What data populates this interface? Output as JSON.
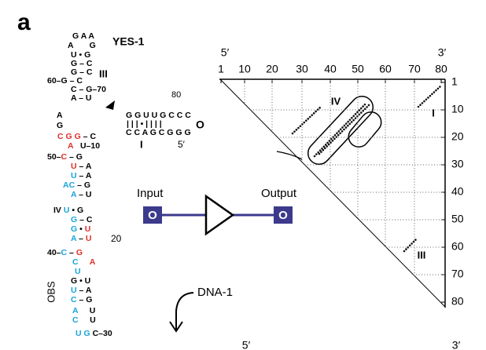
{
  "panel_label": "a",
  "structure": {
    "title": "YES-1",
    "rows": [
      [
        {
          "text": "G A A"
        }
      ],
      [
        {
          "text": "A       G"
        }
      ],
      [
        {
          "text": "U • G"
        }
      ],
      [
        {
          "text": "G – C"
        }
      ],
      [
        {
          "text": "G – C"
        }
      ],
      [
        {
          "text": "60–G – C"
        }
      ],
      [
        {
          "text": "C – G–70"
        }
      ],
      [
        {
          "text": "A – U"
        }
      ],
      [
        {
          "text": "A"
        }
      ],
      [
        {
          "text": "G"
        }
      ],
      [
        {
          "text": "C G G",
          "color": "#e0302a"
        },
        {
          "text": " – C"
        }
      ],
      [
        {
          "text": "A",
          "color": "#e0302a"
        },
        {
          "text": "   U–10"
        }
      ],
      [
        {
          "text": "50–"
        },
        {
          "text": "C",
          "color": "#e0302a"
        },
        {
          "text": " – G"
        }
      ],
      [
        {
          "text": "U",
          "color": "#e0302a"
        },
        {
          "text": " – A"
        }
      ],
      [
        {
          "text": "U",
          "color": "#1aa3d8"
        },
        {
          "text": " – A"
        }
      ],
      [
        {
          "text": "AC",
          "color": "#1aa3d8"
        },
        {
          "text": " – G"
        }
      ],
      [
        {
          "text": "A",
          "color": "#1aa3d8"
        },
        {
          "text": " – U"
        }
      ],
      [
        {
          "text": "IV "
        },
        {
          "text": "U",
          "color": "#1aa3d8"
        },
        {
          "text": " • G"
        }
      ],
      [
        {
          "text": "G",
          "color": "#1aa3d8"
        },
        {
          "text": " – C"
        }
      ],
      [
        {
          "text": "G",
          "color": "#1aa3d8"
        },
        {
          "text": " • "
        },
        {
          "text": "U",
          "color": "#e0302a"
        }
      ],
      [
        {
          "text": "A",
          "color": "#1aa3d8"
        },
        {
          "text": " – "
        },
        {
          "text": "U",
          "color": "#e0302a"
        }
      ],
      [
        {
          "text": "40–"
        },
        {
          "text": "C",
          "color": "#1aa3d8"
        },
        {
          "text": " – "
        },
        {
          "text": "G",
          "color": "#e0302a"
        }
      ],
      [
        {
          "text": "C",
          "color": "#1aa3d8"
        },
        {
          "text": "     "
        },
        {
          "text": "A",
          "color": "#e0302a"
        }
      ],
      [
        {
          "text": "U",
          "color": "#1aa3d8"
        }
      ],
      [
        {
          "text": "G • U"
        }
      ],
      [
        {
          "text": "U",
          "color": "#1aa3d8"
        },
        {
          "text": " – A"
        }
      ],
      [
        {
          "text": "C",
          "color": "#1aa3d8"
        },
        {
          "text": " – G"
        }
      ],
      [
        {
          "text": "A",
          "color": "#1aa3d8"
        },
        {
          "text": "     U"
        }
      ],
      [
        {
          "text": "C",
          "color": "#1aa3d8"
        },
        {
          "text": "     U"
        }
      ],
      [
        {
          "text": "U G",
          "color": "#1aa3d8"
        },
        {
          "text": " C–30"
        }
      ]
    ],
    "arm_rows": [
      "G G U U G C C C",
      "| | | • | | | |",
      "C C A G C G G G"
    ],
    "labels": [
      "III",
      "80",
      "I",
      "5′",
      "O",
      "20"
    ],
    "side_label": "OBS"
  },
  "gate": {
    "input": "Input",
    "output": "Output",
    "input_box": "O",
    "output_box": "O",
    "trigger": "DNA-1"
  },
  "dot_plot": {
    "top_end_labels": [
      "5′",
      "3′"
    ],
    "top_ticks": [
      "1",
      "10",
      "20",
      "30",
      "40",
      "50",
      "60",
      "70",
      "80"
    ],
    "right_ticks": [
      "1",
      "10",
      "20",
      "30",
      "40",
      "50",
      "60",
      "70",
      "80"
    ],
    "region_labels": [
      "IV",
      "I",
      "III"
    ]
  },
  "bottom_labels": [
    "5′",
    "3′"
  ]
}
